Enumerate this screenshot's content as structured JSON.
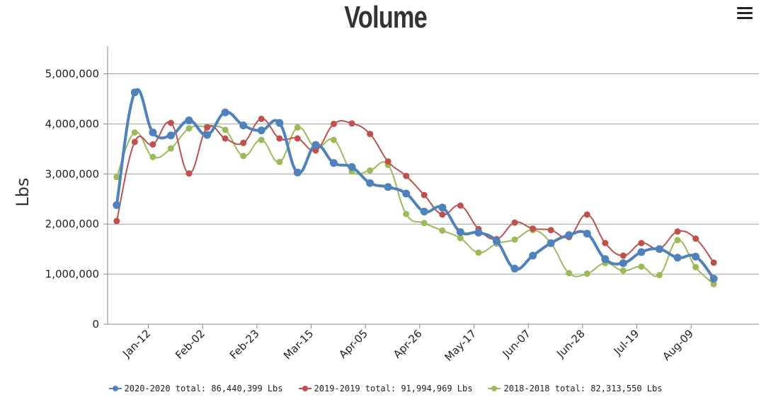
{
  "title": "Volume",
  "menu_icon": "hamburger-menu-icon",
  "chart_data": {
    "type": "line",
    "title": "Volume",
    "ylabel": "Lbs",
    "xlabel": "",
    "ylim": [
      0,
      5500000
    ],
    "yticks": [
      {
        "value": 0,
        "label": "0"
      },
      {
        "value": 1000000,
        "label": "1,000,000"
      },
      {
        "value": 2000000,
        "label": "2,000,000"
      },
      {
        "value": 3000000,
        "label": "3,000,000"
      },
      {
        "value": 4000000,
        "label": "4,000,000"
      },
      {
        "value": 5000000,
        "label": "5,000,000"
      }
    ],
    "xlim": [
      -0.5,
      35.5
    ],
    "xticks": [
      {
        "index": 1.75,
        "label": "Jan-12"
      },
      {
        "index": 4.75,
        "label": "Feb-02"
      },
      {
        "index": 7.75,
        "label": "Feb-23"
      },
      {
        "index": 10.75,
        "label": "Mar-15"
      },
      {
        "index": 13.75,
        "label": "Apr-05"
      },
      {
        "index": 16.75,
        "label": "Apr-26"
      },
      {
        "index": 19.75,
        "label": "May-17"
      },
      {
        "index": 22.75,
        "label": "Jun-07"
      },
      {
        "index": 25.75,
        "label": "Jun-28"
      },
      {
        "index": 28.75,
        "label": "Jul-19"
      },
      {
        "index": 31.75,
        "label": "Aug-09"
      }
    ],
    "grid": "horizontal",
    "legend_position": "bottom",
    "series": [
      {
        "name": "2020-2020 total: 86,440,399 Lbs",
        "color": "#4f81bd",
        "values": [
          2380000,
          4630000,
          3830000,
          3770000,
          4070000,
          3780000,
          4230000,
          3970000,
          3870000,
          4020000,
          3030000,
          3580000,
          3220000,
          3140000,
          2820000,
          2740000,
          2610000,
          2250000,
          2330000,
          1840000,
          1830000,
          1660000,
          1110000,
          1370000,
          1620000,
          1780000,
          1810000,
          1300000,
          1220000,
          1440000,
          1500000,
          1330000,
          1350000,
          910000
        ]
      },
      {
        "name": "2019-2019 total: 91,994,969 Lbs",
        "color": "#c0504d",
        "values": [
          2060000,
          3640000,
          3590000,
          4020000,
          3010000,
          3930000,
          3710000,
          3620000,
          4100000,
          3710000,
          3710000,
          3470000,
          4000000,
          4010000,
          3800000,
          3250000,
          2960000,
          2580000,
          2190000,
          2370000,
          1900000,
          1700000,
          2030000,
          1910000,
          1880000,
          1740000,
          2190000,
          1620000,
          1370000,
          1620000,
          1510000,
          1850000,
          1710000,
          1230000
        ]
      },
      {
        "name": "2018-2018 total: 82,313,550 Lbs",
        "color": "#9bbb59",
        "values": [
          2940000,
          3830000,
          3340000,
          3510000,
          3910000,
          3940000,
          3880000,
          3360000,
          3680000,
          3240000,
          3930000,
          3520000,
          3680000,
          3050000,
          3070000,
          3180000,
          2200000,
          2020000,
          1870000,
          1720000,
          1430000,
          1610000,
          1690000,
          1880000,
          1620000,
          1020000,
          1010000,
          1220000,
          1070000,
          1150000,
          980000,
          1680000,
          1140000,
          800000
        ]
      }
    ]
  }
}
